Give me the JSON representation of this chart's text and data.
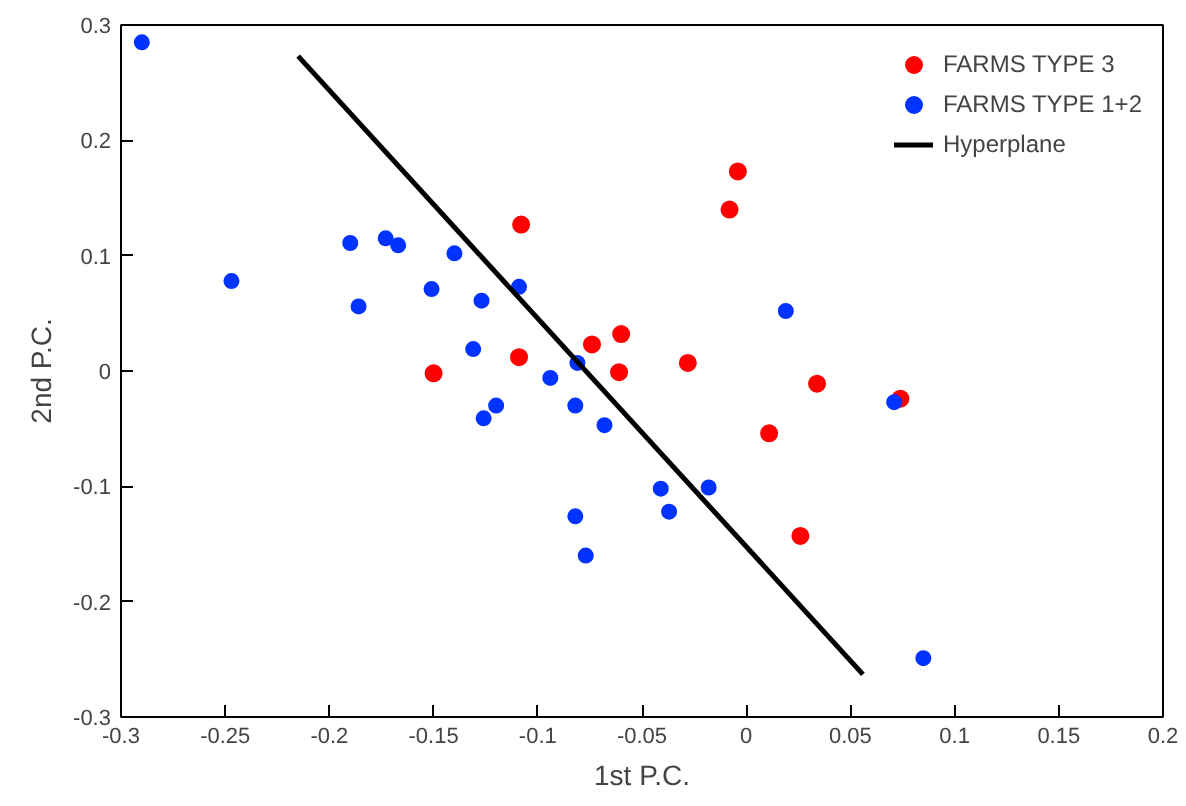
{
  "chart_data": {
    "type": "scatter",
    "xlabel": "1st P.C.",
    "ylabel": "2nd P.C.",
    "xlim": [
      -0.3,
      0.2
    ],
    "ylim": [
      -0.3,
      0.3
    ],
    "xticks": [
      -0.3,
      -0.25,
      -0.2,
      -0.15,
      -0.1,
      -0.05,
      0,
      0.05,
      0.1,
      0.15,
      0.2
    ],
    "yticks": [
      -0.3,
      -0.2,
      -0.1,
      0,
      0.1,
      0.2,
      0.3
    ],
    "grid": false,
    "legend": "top right",
    "marker": "circle",
    "series": [
      {
        "name": "FARMS TYPE 3",
        "color": "#ff0000",
        "x": [
          -0.108,
          -0.15,
          -0.109,
          -0.074,
          -0.06,
          -0.061,
          -0.004,
          -0.008,
          -0.028,
          0.034,
          0.011,
          0.026,
          0.074
        ],
        "values": [
          0.127,
          -0.002,
          0.012,
          0.023,
          0.032,
          -0.001,
          0.173,
          0.14,
          0.007,
          -0.011,
          -0.054,
          -0.143,
          -0.024
        ]
      },
      {
        "name": "FARMS TYPE 1+2",
        "color": "#0033ff",
        "x": [
          -0.29,
          -0.19,
          -0.173,
          -0.167,
          -0.14,
          -0.247,
          -0.186,
          -0.151,
          -0.127,
          -0.109,
          -0.131,
          -0.094,
          -0.081,
          -0.126,
          -0.12,
          -0.082,
          -0.068,
          -0.082,
          -0.077,
          -0.041,
          -0.037,
          -0.018,
          0.071,
          0.085,
          0.019
        ],
        "values": [
          0.285,
          0.111,
          0.115,
          0.109,
          0.102,
          0.078,
          0.056,
          0.071,
          0.061,
          0.073,
          0.019,
          -0.006,
          0.007,
          -0.041,
          -0.03,
          -0.03,
          -0.047,
          -0.126,
          -0.16,
          -0.102,
          -0.122,
          -0.101,
          -0.027,
          -0.249,
          0.052
        ]
      },
      {
        "name": "Hyperplane",
        "type": "line",
        "color": "#000000",
        "marker": "none",
        "x": [
          -0.215,
          0.056
        ],
        "values": [
          0.273,
          -0.263
        ]
      }
    ]
  }
}
